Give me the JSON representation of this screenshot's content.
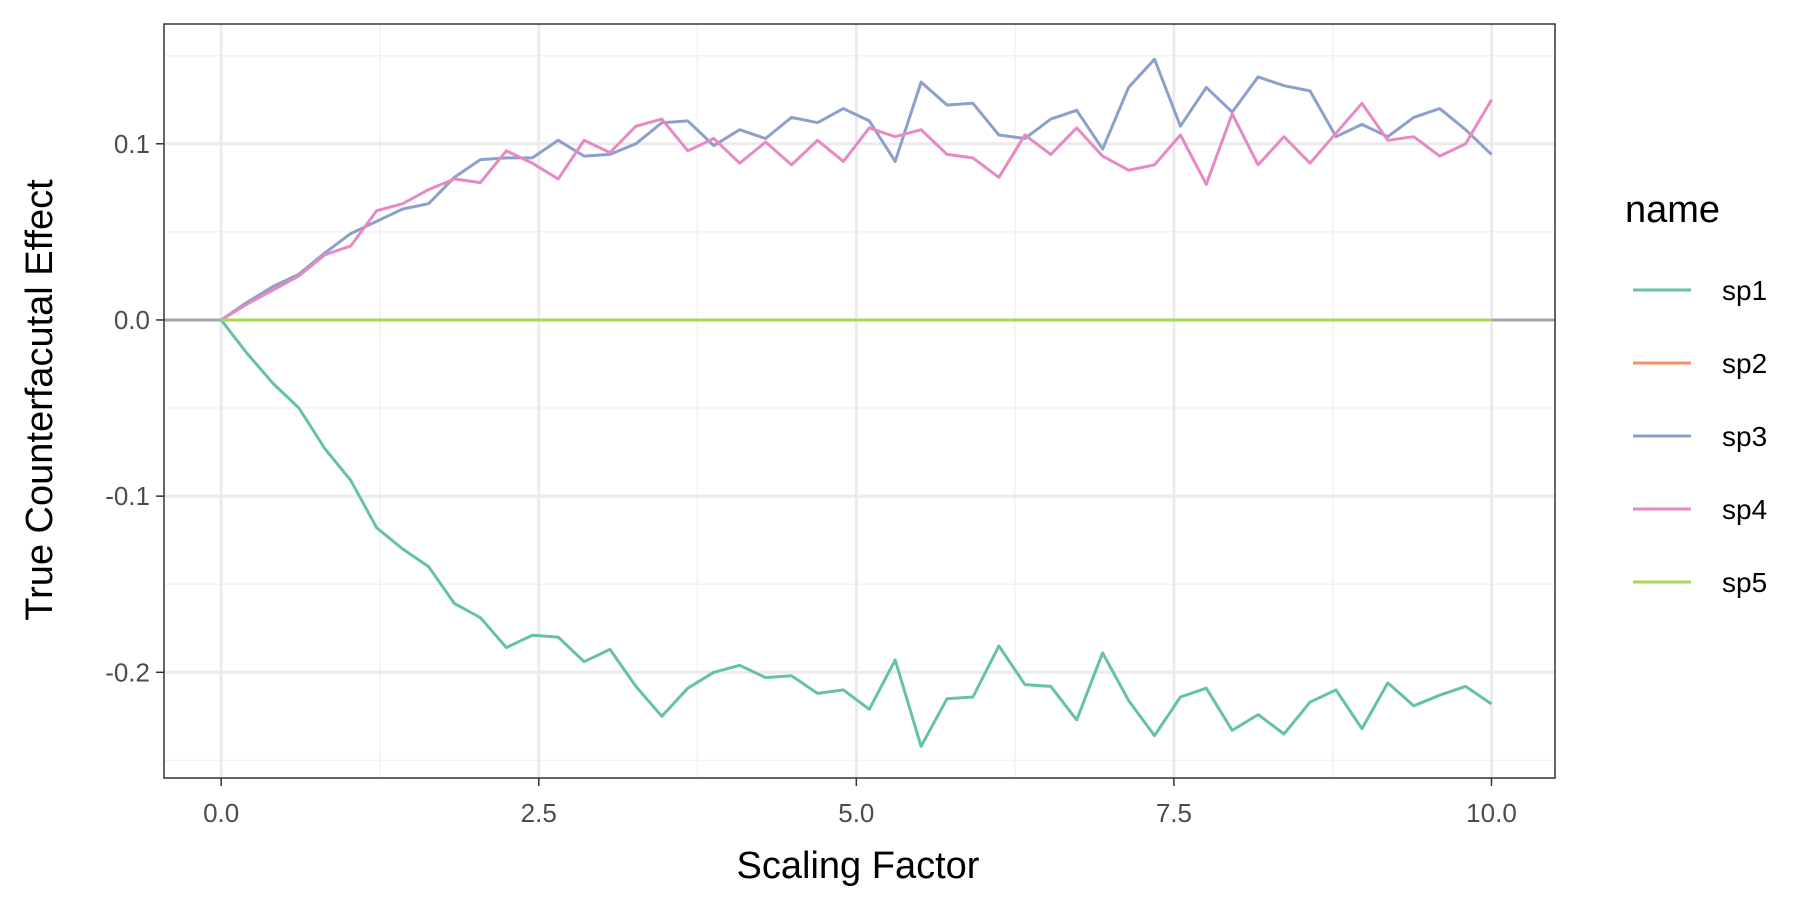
{
  "chart_data": {
    "type": "line",
    "title": "",
    "xlabel": "Scaling Factor",
    "ylabel": "True Counterfacutal Effect",
    "xlim": [
      -0.45,
      10.5
    ],
    "ylim": [
      -0.26,
      0.168
    ],
    "x_ticks": [
      0,
      2.5,
      5,
      7.5,
      10
    ],
    "x_tick_labels": [
      "0.0",
      "2.5",
      "5.0",
      "7.5",
      "10.0"
    ],
    "y_ticks": [
      -0.2,
      -0.1,
      0.0,
      0.1
    ],
    "y_tick_labels": [
      "-0.2",
      "-0.1",
      "0.0",
      "0.1"
    ],
    "grid": true,
    "reference_line": {
      "y": 0,
      "color": "#a6a6a6"
    },
    "legend": {
      "title": "name",
      "position": "right"
    },
    "x": [
      0,
      0.204,
      0.408,
      0.612,
      0.816,
      1.02,
      1.224,
      1.429,
      1.633,
      1.837,
      2.041,
      2.245,
      2.449,
      2.653,
      2.857,
      3.061,
      3.265,
      3.469,
      3.673,
      3.878,
      4.082,
      4.286,
      4.49,
      4.694,
      4.898,
      5.102,
      5.306,
      5.51,
      5.714,
      5.918,
      6.122,
      6.327,
      6.531,
      6.735,
      6.939,
      7.143,
      7.347,
      7.551,
      7.755,
      7.959,
      8.163,
      8.367,
      8.571,
      8.776,
      8.98,
      9.184,
      9.388,
      9.592,
      9.796,
      10.0
    ],
    "series": [
      {
        "name": "sp1",
        "color": "#66c2a5",
        "values": [
          0,
          -0.019,
          -0.036,
          -0.05,
          -0.073,
          -0.091,
          -0.118,
          -0.13,
          -0.14,
          -0.161,
          -0.169,
          -0.186,
          -0.179,
          -0.18,
          -0.194,
          -0.187,
          -0.208,
          -0.225,
          -0.209,
          -0.2,
          -0.196,
          -0.203,
          -0.202,
          -0.212,
          -0.21,
          -0.221,
          -0.193,
          -0.242,
          -0.215,
          -0.214,
          -0.185,
          -0.207,
          -0.208,
          -0.227,
          -0.189,
          -0.216,
          -0.236,
          -0.214,
          -0.209,
          -0.233,
          -0.224,
          -0.235,
          -0.217,
          -0.21,
          -0.232,
          -0.206,
          -0.219,
          -0.213,
          -0.208,
          -0.218
        ]
      },
      {
        "name": "sp2",
        "color": "#fc8d62",
        "values": [
          0,
          0,
          0,
          0,
          0,
          0,
          0,
          0,
          0,
          0,
          0,
          0,
          0,
          0,
          0,
          0,
          0,
          0,
          0,
          0,
          0,
          0,
          0,
          0,
          0,
          0,
          0,
          0,
          0,
          0,
          0,
          0,
          0,
          0,
          0,
          0,
          0,
          0,
          0,
          0,
          0,
          0,
          0,
          0,
          0,
          0,
          0,
          0,
          0,
          0
        ]
      },
      {
        "name": "sp3",
        "color": "#8da0cb",
        "values": [
          0,
          0.01,
          0.019,
          0.026,
          0.038,
          0.049,
          0.056,
          0.063,
          0.066,
          0.081,
          0.091,
          0.092,
          0.092,
          0.102,
          0.093,
          0.094,
          0.1,
          0.112,
          0.113,
          0.099,
          0.108,
          0.103,
          0.115,
          0.112,
          0.12,
          0.113,
          0.09,
          0.135,
          0.122,
          0.123,
          0.105,
          0.103,
          0.114,
          0.119,
          0.097,
          0.132,
          0.148,
          0.11,
          0.132,
          0.118,
          0.138,
          0.133,
          0.13,
          0.104,
          0.111,
          0.104,
          0.115,
          0.12,
          0.108,
          0.094
        ]
      },
      {
        "name": "sp4",
        "color": "#e78ac3",
        "values": [
          0,
          0.009,
          0.017,
          0.025,
          0.037,
          0.042,
          0.062,
          0.066,
          0.074,
          0.08,
          0.078,
          0.096,
          0.089,
          0.08,
          0.102,
          0.095,
          0.11,
          0.114,
          0.096,
          0.103,
          0.089,
          0.101,
          0.088,
          0.102,
          0.09,
          0.109,
          0.104,
          0.108,
          0.094,
          0.092,
          0.081,
          0.105,
          0.094,
          0.109,
          0.093,
          0.085,
          0.088,
          0.105,
          0.077,
          0.117,
          0.088,
          0.104,
          0.089,
          0.106,
          0.123,
          0.102,
          0.104,
          0.093,
          0.1,
          0.125
        ]
      },
      {
        "name": "sp5",
        "color": "#a6d854",
        "values": [
          0,
          0,
          0,
          0,
          0,
          0,
          0,
          0,
          0,
          0,
          0,
          0,
          0,
          0,
          0,
          0,
          0,
          0,
          0,
          0,
          0,
          0,
          0,
          0,
          0,
          0,
          0,
          0,
          0,
          0,
          0,
          0,
          0,
          0,
          0,
          0,
          0,
          0,
          0,
          0,
          0,
          0,
          0,
          0,
          0,
          0,
          0,
          0,
          0,
          0
        ]
      }
    ]
  }
}
